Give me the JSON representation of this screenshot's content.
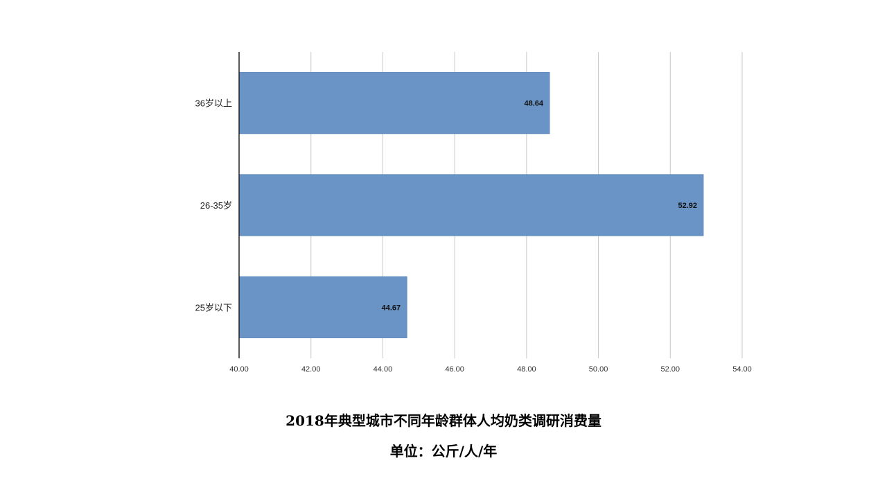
{
  "chart_data": {
    "type": "bar",
    "orientation": "horizontal",
    "categories": [
      "25岁以下",
      "26-35岁",
      "36岁以上"
    ],
    "values": [
      44.67,
      52.92,
      48.64
    ],
    "data_labels": [
      "44.67",
      "52.92",
      "48.64"
    ],
    "xlim": [
      40,
      54
    ],
    "x_ticks": [
      "40.00",
      "42.00",
      "44.00",
      "46.00",
      "48.00",
      "50.00",
      "52.00",
      "54.00"
    ],
    "title": "2018年典型城市不同年龄群体人均奶类调研消费量",
    "subtitle": "单位：公斤/人/年",
    "grid": true,
    "bar_color": "#6a94c6",
    "bar_edge_color": "#5a84b8"
  }
}
